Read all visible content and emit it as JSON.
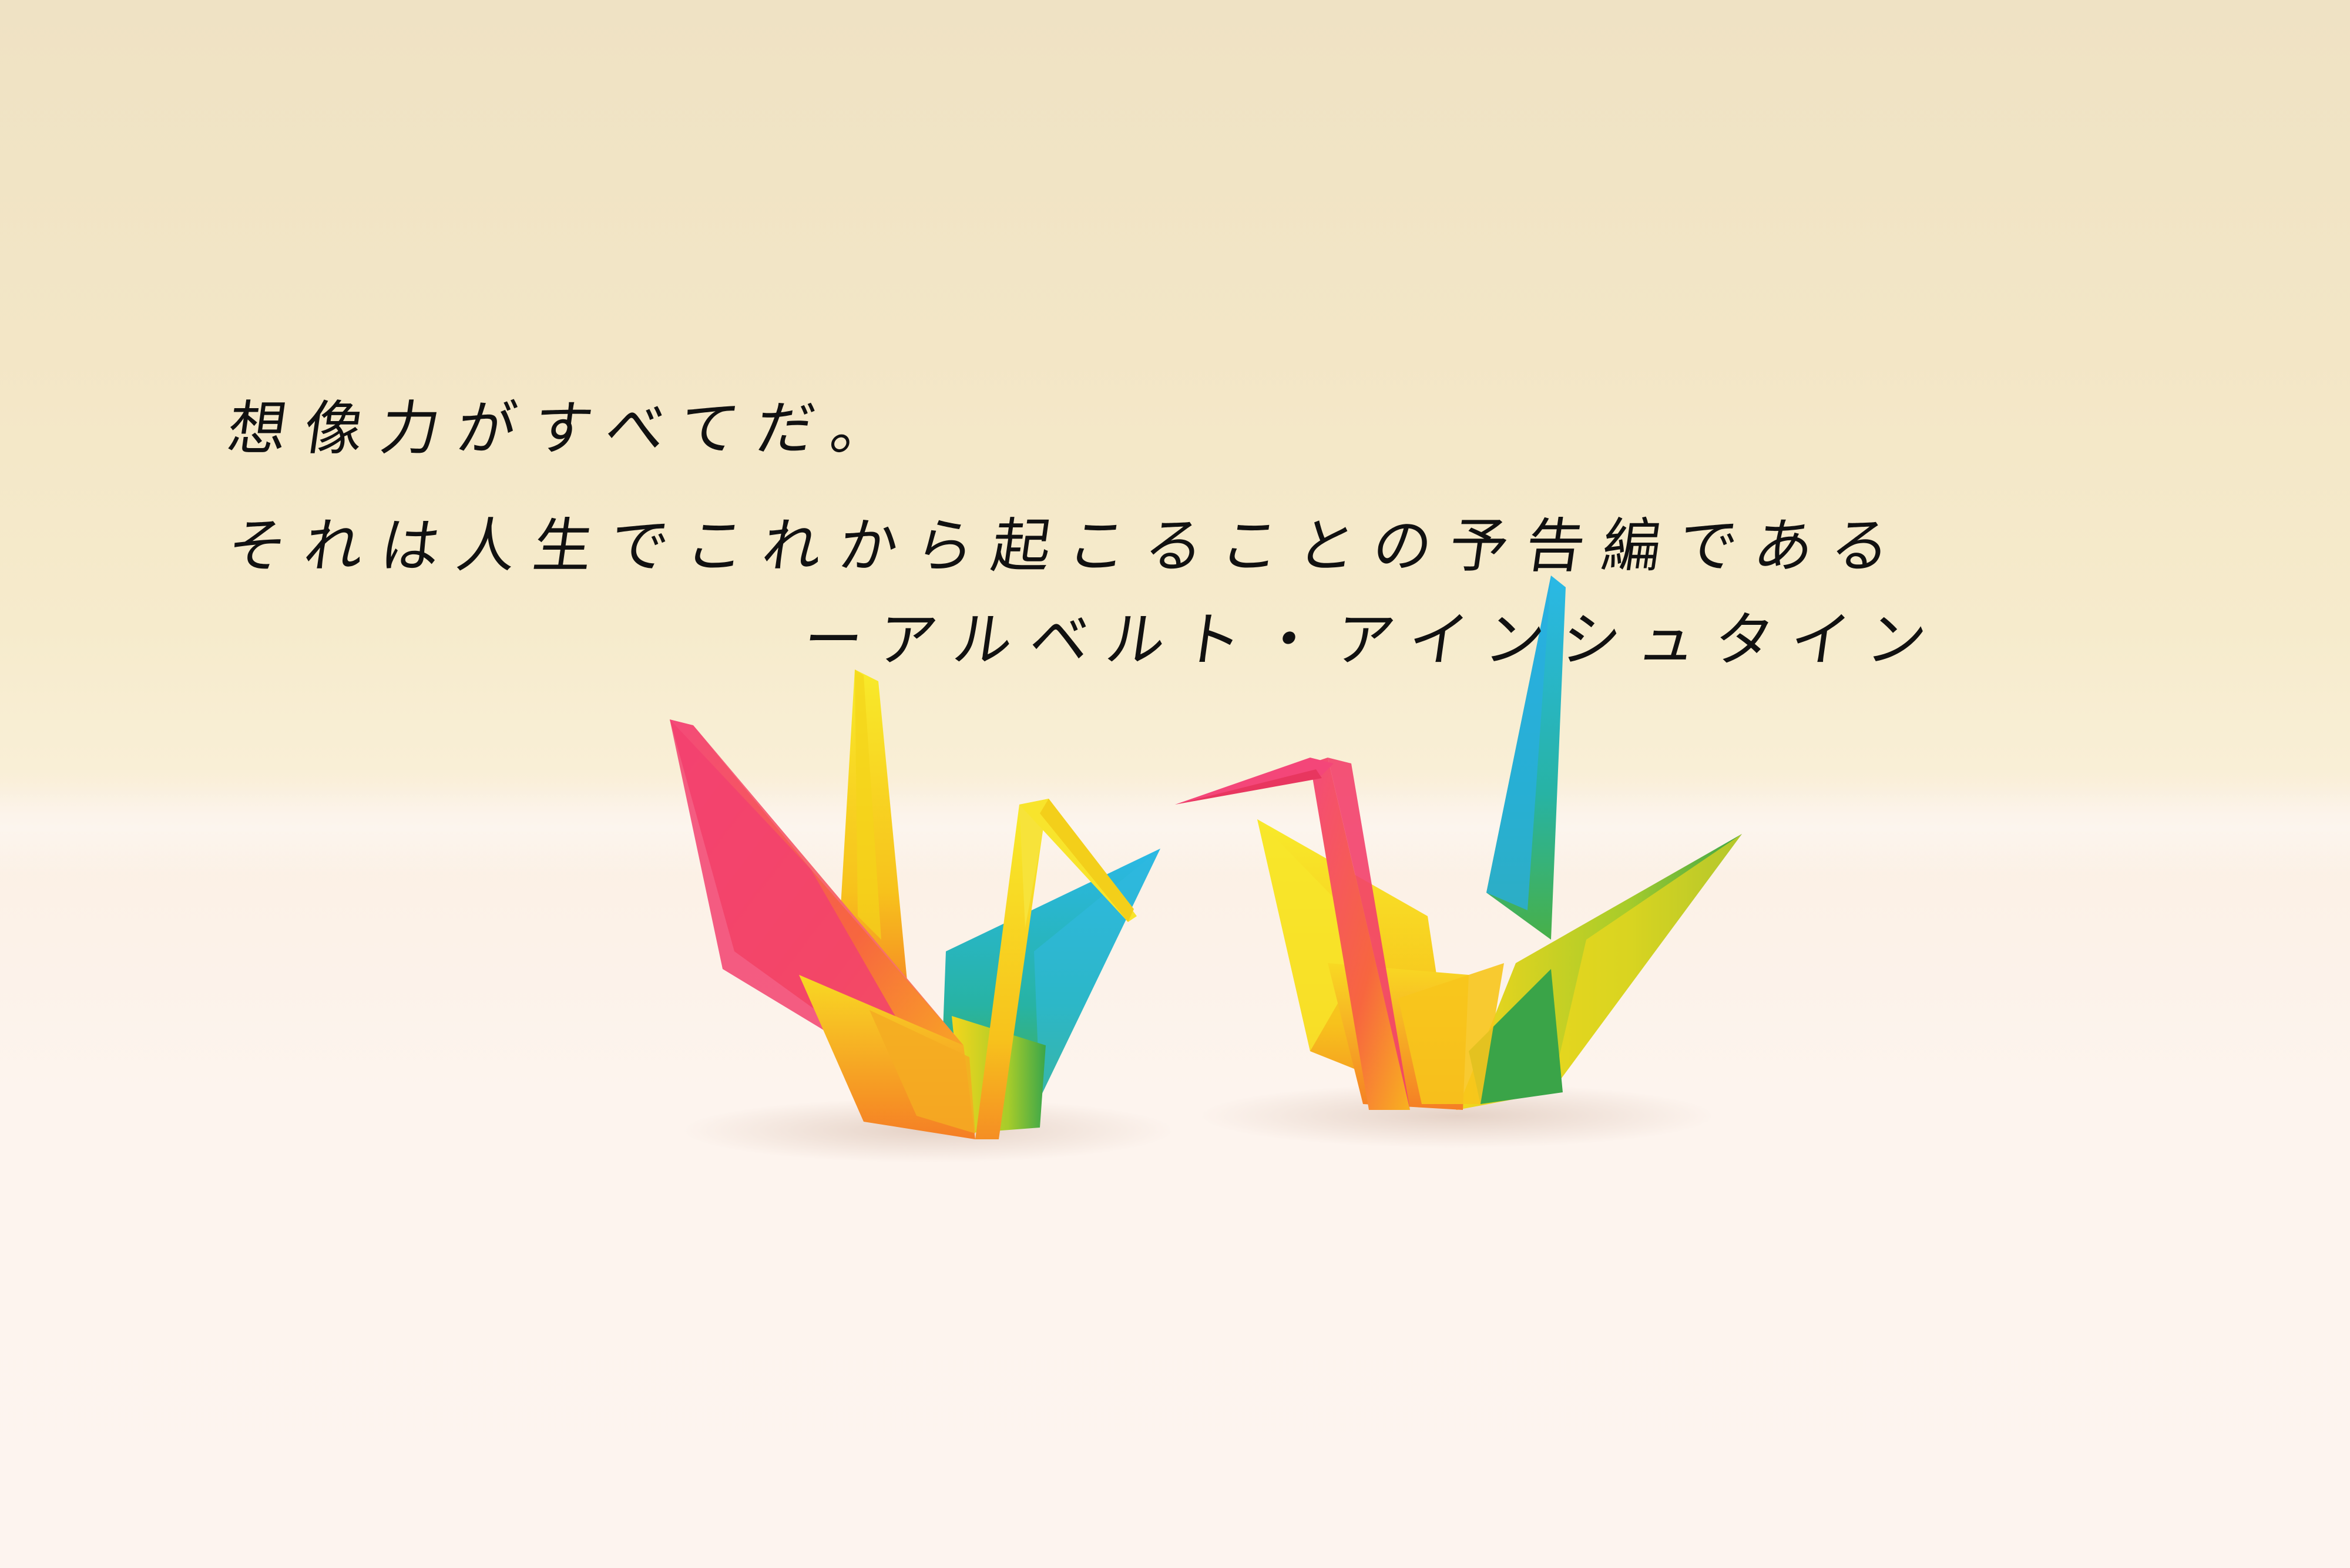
{
  "quote": {
    "line_1": "想像力がすべてだ。",
    "line_2": "それは人生でこれから起こることの予告編である",
    "attribution": "ーアルベルト・アインシュタイン"
  },
  "colors": {
    "text": "#111111",
    "background_top": "#efe2c4",
    "background_bottom": "#fdf4ef",
    "crane_pink": "#f0516e",
    "crane_yellow": "#f7e41a",
    "crane_orange": "#f7a02a",
    "crane_blue": "#2ab3dd",
    "crane_green": "#45b04a"
  },
  "objects": [
    "origami-crane-left",
    "origami-crane-right"
  ]
}
